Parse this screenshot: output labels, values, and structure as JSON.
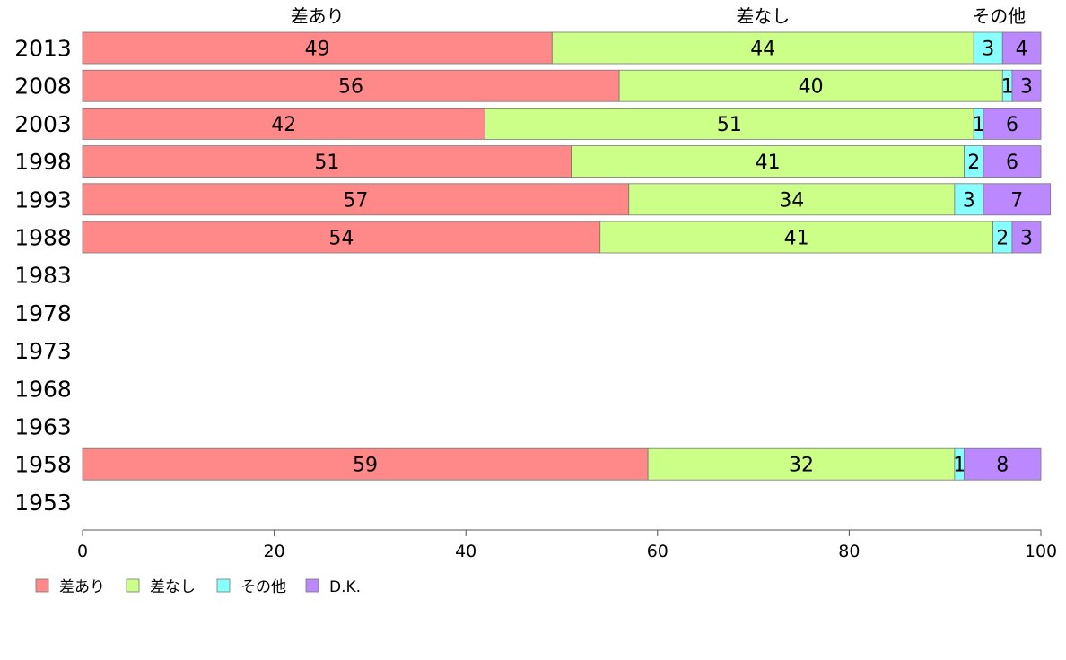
{
  "chart_data": {
    "type": "bar",
    "orientation": "horizontal",
    "stacked": true,
    "categories": [
      "2013",
      "2008",
      "2003",
      "1998",
      "1993",
      "1988",
      "1983",
      "1978",
      "1973",
      "1968",
      "1963",
      "1958",
      "1953"
    ],
    "series": [
      {
        "name": "差あり",
        "color": "#ff8888",
        "values": [
          49,
          56,
          42,
          51,
          57,
          54,
          null,
          null,
          null,
          null,
          null,
          59,
          null
        ]
      },
      {
        "name": "差なし",
        "color": "#ccff88",
        "values": [
          44,
          40,
          51,
          41,
          34,
          41,
          null,
          null,
          null,
          null,
          null,
          32,
          null
        ]
      },
      {
        "name": "その他",
        "color": "#88ffff",
        "values": [
          3,
          1,
          1,
          2,
          3,
          2,
          null,
          null,
          null,
          null,
          null,
          1,
          null
        ]
      },
      {
        "name": "D.K.",
        "color": "#bb88ff",
        "values": [
          4,
          3,
          6,
          6,
          7,
          3,
          null,
          null,
          null,
          null,
          null,
          8,
          null
        ]
      }
    ],
    "top_labels": [
      "差あり",
      "差なし",
      "その他",
      "D..."
    ],
    "xlim": [
      0,
      100
    ],
    "xticks": [
      0,
      20,
      40,
      60,
      80,
      100
    ],
    "legend": "bottom-left",
    "grid": false
  }
}
